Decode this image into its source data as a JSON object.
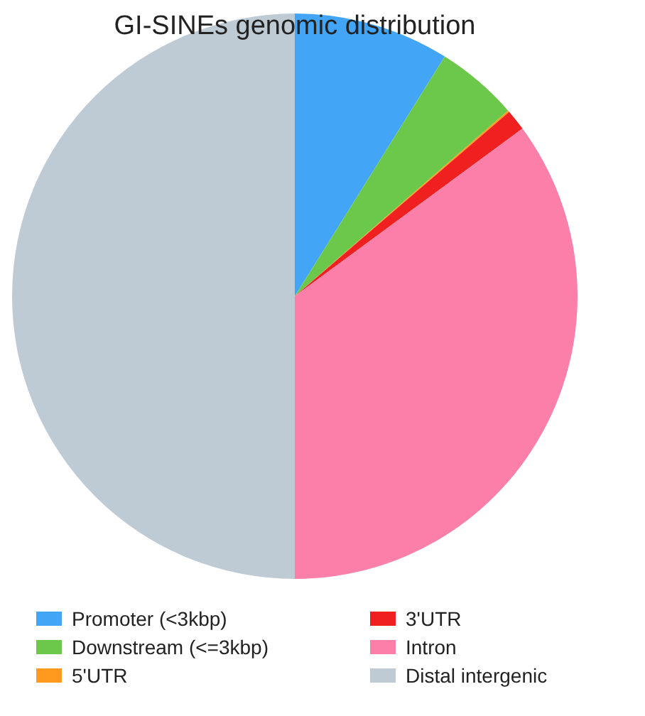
{
  "chart_data": {
    "type": "pie",
    "title": "GI-SINEs genomic distribution",
    "categories": [
      "Promoter (<3kbp)",
      "Downstream (<=3kbp)",
      "5'UTR",
      "3'UTR",
      "Intron",
      "Distal intergenic"
    ],
    "values": [
      8.9,
      4.7,
      0.1,
      1.2,
      35.1,
      50.0
    ],
    "colors": [
      "#42a5f5",
      "#6cc84a",
      "#ff9a1e",
      "#f02020",
      "#fb7fa8",
      "#bfcbd4"
    ],
    "legend": "bottom"
  }
}
